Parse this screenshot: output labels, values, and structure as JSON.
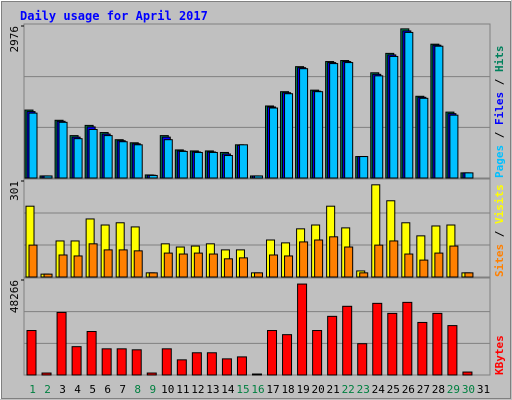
{
  "chart_data": [
    {
      "type": "bar",
      "title": "Daily usage for April 2017",
      "ylim": [
        0,
        2976
      ],
      "yticks": [
        2976
      ],
      "legend_separator": "/",
      "series": [
        {
          "name": "Hits",
          "color": "#00805c",
          "values": [
            1330,
            40,
            1130,
            830,
            1030,
            890,
            750,
            690,
            60,
            830,
            550,
            530,
            530,
            500,
            650,
            40,
            1410,
            1690,
            2180,
            1720,
            2280,
            2300,
            420,
            2060,
            2440,
            2920,
            1600,
            2620,
            1290,
            100,
            0
          ]
        },
        {
          "name": "Files",
          "color": "#0000ff",
          "values": [
            1300,
            40,
            1110,
            800,
            1000,
            860,
            730,
            670,
            55,
            800,
            530,
            510,
            510,
            470,
            640,
            40,
            1390,
            1670,
            2160,
            1700,
            2260,
            2280,
            420,
            2030,
            2410,
            2880,
            1580,
            2600,
            1260,
            100,
            0
          ]
        },
        {
          "name": "Pages",
          "color": "#00c0ff",
          "values": [
            1270,
            40,
            1090,
            770,
            950,
            830,
            710,
            650,
            50,
            750,
            520,
            500,
            500,
            440,
            650,
            40,
            1370,
            1650,
            2140,
            1690,
            2240,
            2260,
            420,
            2000,
            2380,
            2850,
            1560,
            2580,
            1230,
            100,
            0
          ]
        }
      ]
    },
    {
      "type": "bar",
      "ylim": [
        0,
        301
      ],
      "yticks": [
        301
      ],
      "legend_separator": "/",
      "series": [
        {
          "name": "Visits",
          "color": "#ffff00",
          "values": [
            222,
            9,
            113,
            113,
            182,
            163,
            170,
            157,
            13,
            104,
            94,
            97,
            104,
            85,
            85,
            13,
            116,
            107,
            151,
            163,
            222,
            154,
            19,
            289,
            239,
            170,
            129,
            160,
            163,
            13,
            0
          ]
        },
        {
          "name": "Sites",
          "color": "#ff8000",
          "values": [
            100,
            9,
            69,
            66,
            104,
            85,
            85,
            82,
            13,
            75,
            72,
            75,
            72,
            57,
            60,
            13,
            69,
            66,
            110,
            116,
            126,
            94,
            13,
            100,
            113,
            72,
            53,
            75,
            97,
            13,
            0
          ]
        }
      ]
    },
    {
      "type": "bar",
      "ylim": [
        0,
        48266
      ],
      "yticks": [
        48266
      ],
      "categories": [
        "1",
        "2",
        "3",
        "4",
        "5",
        "6",
        "7",
        "8",
        "9",
        "10",
        "11",
        "12",
        "13",
        "14",
        "15",
        "16",
        "17",
        "18",
        "19",
        "20",
        "21",
        "22",
        "23",
        "24",
        "25",
        "26",
        "27",
        "28",
        "29",
        "30",
        "31"
      ],
      "category_colors": [
        "#008040",
        "#008040",
        "#000000",
        "#000000",
        "#000000",
        "#000000",
        "#000000",
        "#008040",
        "#008040",
        "#000000",
        "#000000",
        "#000000",
        "#000000",
        "#000000",
        "#008040",
        "#008040",
        "#000000",
        "#000000",
        "#000000",
        "#000000",
        "#000000",
        "#008040",
        "#008040",
        "#000000",
        "#000000",
        "#000000",
        "#000000",
        "#000000",
        "#008040",
        "#008040",
        "#000000"
      ],
      "series": [
        {
          "name": "KBytes",
          "color": "#ff0000",
          "values": [
            22600,
            1000,
            31800,
            14400,
            22100,
            13300,
            13300,
            12800,
            1000,
            13300,
            7700,
            11300,
            11300,
            8200,
            9200,
            500,
            22600,
            20500,
            46200,
            22600,
            29800,
            34900,
            15900,
            36400,
            31300,
            36900,
            26700,
            31300,
            25100,
            1500,
            0
          ]
        }
      ]
    }
  ]
}
